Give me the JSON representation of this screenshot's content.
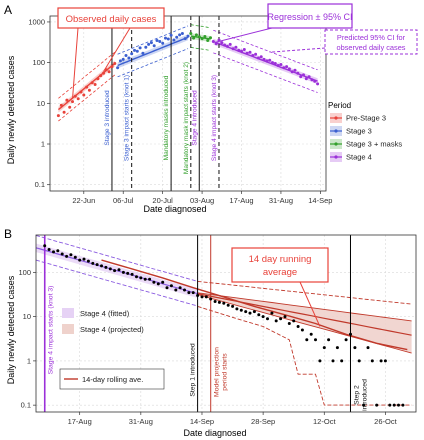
{
  "colors": {
    "pre_stage3": "#e8423a",
    "stage3": "#3b5fd0",
    "masks": "#33a02c",
    "stage4": "#9b30d9",
    "stage4_fill": "#e6d2f5",
    "projected_fill": "#efd2cc",
    "projection": "#c0392b",
    "observed": "#000000",
    "band_stage4": "#8a5be0",
    "callout_red": "#e8423a",
    "callout_purple": "#9b30d9"
  },
  "chart_data": [
    {
      "panel_letter": "A",
      "type": "scatter",
      "xlabel": "Date diagnosed",
      "ylabel": "Daily newly detected cases",
      "y_scale": "log",
      "xlim": [
        "2020-06-10",
        "2020-09-16"
      ],
      "ylim": [
        0.07,
        1400
      ],
      "x_ticks": [
        {
          "date": "2020-06-22",
          "label": "22-Jun"
        },
        {
          "date": "2020-07-06",
          "label": "06-Jul"
        },
        {
          "date": "2020-07-20",
          "label": "20-Jul"
        },
        {
          "date": "2020-08-03",
          "label": "03-Aug"
        },
        {
          "date": "2020-08-17",
          "label": "17-Aug"
        },
        {
          "date": "2020-08-31",
          "label": "31-Aug"
        },
        {
          "date": "2020-09-14",
          "label": "14-Sep"
        }
      ],
      "y_ticks": [
        {
          "value": 0.1,
          "label": "0.1"
        },
        {
          "value": 1,
          "label": "1"
        },
        {
          "value": 10,
          "label": "10"
        },
        {
          "value": 100,
          "label": "100"
        },
        {
          "value": 1000,
          "label": "1000"
        }
      ],
      "grid": true,
      "legend": {
        "title": "Period",
        "placement": "right",
        "entries": [
          {
            "label": "Pre-Stage 3",
            "color_key": "pre_stage3"
          },
          {
            "label": "Stage 3",
            "color_key": "stage3"
          },
          {
            "label": "Stage 3 + masks",
            "color_key": "masks"
          },
          {
            "label": "Stage 4",
            "color_key": "stage4"
          }
        ]
      },
      "series": [
        {
          "name": "Pre-Stage 3",
          "color_key": "pre_stage3",
          "fit": {
            "start": "2020-06-13",
            "end": "2020-07-03",
            "y_start": 7,
            "y_end": 95
          },
          "points": [
            [
              "2020-06-13",
              5
            ],
            [
              "2020-06-14",
              9
            ],
            [
              "2020-06-15",
              6
            ],
            [
              "2020-06-16",
              12
            ],
            [
              "2020-06-17",
              8
            ],
            [
              "2020-06-18",
              11
            ],
            [
              "2020-06-19",
              15
            ],
            [
              "2020-06-20",
              13
            ],
            [
              "2020-06-21",
              19
            ],
            [
              "2020-06-22",
              16
            ],
            [
              "2020-06-23",
              25
            ],
            [
              "2020-06-24",
              21
            ],
            [
              "2020-06-25",
              32
            ],
            [
              "2020-06-26",
              29
            ],
            [
              "2020-06-27",
              40
            ],
            [
              "2020-06-28",
              48
            ],
            [
              "2020-06-29",
              55
            ],
            [
              "2020-06-30",
              67
            ],
            [
              "2020-07-01",
              60
            ],
            [
              "2020-07-02",
              80
            ],
            [
              "2020-07-03",
              95
            ]
          ]
        },
        {
          "name": "Stage 3",
          "color_key": "stage3",
          "fit": {
            "start": "2020-07-04",
            "end": "2020-07-29",
            "y_start": 85,
            "y_end": 420
          },
          "points": [
            [
              "2020-07-04",
              75
            ],
            [
              "2020-07-05",
              110
            ],
            [
              "2020-07-06",
              120
            ],
            [
              "2020-07-07",
              150
            ],
            [
              "2020-07-08",
              130
            ],
            [
              "2020-07-09",
              165
            ],
            [
              "2020-07-10",
              200
            ],
            [
              "2020-07-11",
              190
            ],
            [
              "2020-07-12",
              230
            ],
            [
              "2020-07-13",
              170
            ],
            [
              "2020-07-14",
              240
            ],
            [
              "2020-07-15",
              280
            ],
            [
              "2020-07-16",
              310
            ],
            [
              "2020-07-17",
              260
            ],
            [
              "2020-07-18",
              350
            ],
            [
              "2020-07-19",
              330
            ],
            [
              "2020-07-20",
              300
            ],
            [
              "2020-07-21",
              400
            ],
            [
              "2020-07-22",
              380
            ],
            [
              "2020-07-23",
              470
            ],
            [
              "2020-07-24",
              360
            ],
            [
              "2020-07-25",
              420
            ],
            [
              "2020-07-26",
              480
            ],
            [
              "2020-07-27",
              520
            ],
            [
              "2020-07-28",
              390
            ],
            [
              "2020-07-29",
              450
            ]
          ]
        },
        {
          "name": "Stage 3 + masks",
          "color_key": "masks",
          "fit": {
            "start": "2020-07-30",
            "end": "2020-08-06",
            "y_start": 450,
            "y_end": 380
          },
          "points": [
            [
              "2020-07-30",
              520
            ],
            [
              "2020-07-31",
              400
            ],
            [
              "2020-08-01",
              480
            ],
            [
              "2020-08-02",
              430
            ],
            [
              "2020-08-03",
              390
            ],
            [
              "2020-08-04",
              440
            ],
            [
              "2020-08-05",
              350
            ],
            [
              "2020-08-06",
              410
            ]
          ]
        },
        {
          "name": "Stage 4",
          "color_key": "stage4",
          "fit": {
            "start": "2020-08-07",
            "end": "2020-09-13",
            "y_start": 330,
            "y_end": 35
          },
          "points": [
            [
              "2020-08-07",
              330
            ],
            [
              "2020-08-08",
              290
            ],
            [
              "2020-08-09",
              360
            ],
            [
              "2020-08-10",
              310
            ],
            [
              "2020-08-11",
              270
            ],
            [
              "2020-08-12",
              250
            ],
            [
              "2020-08-13",
              280
            ],
            [
              "2020-08-14",
              220
            ],
            [
              "2020-08-15",
              240
            ],
            [
              "2020-08-16",
              200
            ],
            [
              "2020-08-17",
              190
            ],
            [
              "2020-08-18",
              210
            ],
            [
              "2020-08-19",
              170
            ],
            [
              "2020-08-20",
              180
            ],
            [
              "2020-08-21",
              150
            ],
            [
              "2020-08-22",
              160
            ],
            [
              "2020-08-23",
              130
            ],
            [
              "2020-08-24",
              140
            ],
            [
              "2020-08-25",
              120
            ],
            [
              "2020-08-26",
              110
            ],
            [
              "2020-08-27",
              115
            ],
            [
              "2020-08-28",
              100
            ],
            [
              "2020-08-29",
              95
            ],
            [
              "2020-08-30",
              85
            ],
            [
              "2020-08-31",
              90
            ],
            [
              "2020-09-01",
              75
            ],
            [
              "2020-09-02",
              80
            ],
            [
              "2020-09-03",
              70
            ],
            [
              "2020-09-04",
              60
            ],
            [
              "2020-09-05",
              65
            ],
            [
              "2020-09-06",
              55
            ],
            [
              "2020-09-07",
              45
            ],
            [
              "2020-09-08",
              50
            ],
            [
              "2020-09-09",
              40
            ],
            [
              "2020-09-10",
              45
            ],
            [
              "2020-09-11",
              38
            ],
            [
              "2020-09-12",
              35
            ],
            [
              "2020-09-13",
              30
            ]
          ]
        }
      ],
      "events": [
        {
          "date": "2020-07-02",
          "label": "Stage 3 introduced",
          "style": "solid",
          "color_key": "stage3"
        },
        {
          "date": "2020-07-09",
          "label": "Stage 3 impact starts (knot 1)",
          "style": "dashed",
          "color_key": "stage3"
        },
        {
          "date": "2020-07-23",
          "label": "Mandatory masks introduced",
          "style": "solid",
          "color_key": "masks"
        },
        {
          "date": "2020-07-30",
          "label": "Mandatory mask impact starts (knot 2)",
          "style": "dashed",
          "color_key": "masks"
        },
        {
          "date": "2020-08-02",
          "label": "Stage 4 introduced",
          "style": "solid",
          "color_key": "stage4"
        },
        {
          "date": "2020-08-09",
          "label": "Stage 4 impact starts (knot 3)",
          "style": "dashed",
          "color_key": "stage4"
        }
      ],
      "annotations": [
        {
          "text": "Observed daily cases",
          "style": "red-box"
        },
        {
          "text": "Regression ± 95% CI",
          "style": "purple-box"
        },
        {
          "text": "Predicted 95% CI for observed daily cases",
          "style": "purple-dashed-box"
        }
      ]
    },
    {
      "panel_letter": "B",
      "type": "line",
      "xlabel": "Date diagnosed",
      "ylabel": "Daily newly detected cases",
      "y_scale": "log",
      "xlim": [
        "2020-08-07",
        "2020-11-02"
      ],
      "ylim": [
        0.07,
        700
      ],
      "x_ticks": [
        {
          "date": "2020-08-17",
          "label": "17-Aug"
        },
        {
          "date": "2020-08-31",
          "label": "31-Aug"
        },
        {
          "date": "2020-09-14",
          "label": "14-Sep"
        },
        {
          "date": "2020-09-28",
          "label": "28-Sep"
        },
        {
          "date": "2020-10-12",
          "label": "12-Oct"
        },
        {
          "date": "2020-10-26",
          "label": "26-Oct"
        }
      ],
      "y_ticks": [
        {
          "value": 0.1,
          "label": "0.1"
        },
        {
          "value": 1,
          "label": "1"
        },
        {
          "value": 10,
          "label": "10"
        },
        {
          "value": 100,
          "label": "100"
        }
      ],
      "grid": true,
      "legend": {
        "placement": "left",
        "entries": [
          {
            "label": "Stage 4 (fitted)",
            "color_key": "stage4_fill",
            "kind": "fill"
          },
          {
            "label": "Stage 4 (projected)",
            "color_key": "projected_fill",
            "kind": "fill"
          },
          {
            "label": "14-day rolling ave.",
            "color_key": "projection",
            "kind": "line"
          }
        ]
      },
      "observed": [
        [
          "2020-08-09",
          400
        ],
        [
          "2020-08-10",
          330
        ],
        [
          "2020-08-11",
          290
        ],
        [
          "2020-08-12",
          310
        ],
        [
          "2020-08-13",
          260
        ],
        [
          "2020-08-14",
          230
        ],
        [
          "2020-08-15",
          250
        ],
        [
          "2020-08-16",
          220
        ],
        [
          "2020-08-17",
          190
        ],
        [
          "2020-08-18",
          200
        ],
        [
          "2020-08-19",
          180
        ],
        [
          "2020-08-20",
          160
        ],
        [
          "2020-08-21",
          150
        ],
        [
          "2020-08-22",
          140
        ],
        [
          "2020-08-23",
          130
        ],
        [
          "2020-08-24",
          120
        ],
        [
          "2020-08-25",
          110
        ],
        [
          "2020-08-26",
          115
        ],
        [
          "2020-08-27",
          100
        ],
        [
          "2020-08-28",
          95
        ],
        [
          "2020-08-29",
          90
        ],
        [
          "2020-08-30",
          80
        ],
        [
          "2020-08-31",
          75
        ],
        [
          "2020-09-01",
          70
        ],
        [
          "2020-09-02",
          70
        ],
        [
          "2020-09-03",
          60
        ],
        [
          "2020-09-04",
          55
        ],
        [
          "2020-09-05",
          60
        ],
        [
          "2020-09-06",
          45
        ],
        [
          "2020-09-07",
          50
        ],
        [
          "2020-09-08",
          40
        ],
        [
          "2020-09-09",
          45
        ],
        [
          "2020-09-10",
          40
        ],
        [
          "2020-09-11",
          35
        ],
        [
          "2020-09-12",
          35
        ],
        [
          "2020-09-13",
          30
        ],
        [
          "2020-09-14",
          28
        ],
        [
          "2020-09-15",
          28
        ],
        [
          "2020-09-16",
          25
        ],
        [
          "2020-09-17",
          22
        ],
        [
          "2020-09-18",
          21
        ],
        [
          "2020-09-19",
          20
        ],
        [
          "2020-09-20",
          18
        ],
        [
          "2020-09-21",
          17
        ],
        [
          "2020-09-22",
          15
        ],
        [
          "2020-09-23",
          14
        ],
        [
          "2020-09-24",
          13
        ],
        [
          "2020-09-25",
          12
        ],
        [
          "2020-09-26",
          13
        ],
        [
          "2020-09-27",
          11
        ],
        [
          "2020-09-28",
          10
        ],
        [
          "2020-09-29",
          9
        ],
        [
          "2020-09-30",
          12
        ],
        [
          "2020-10-01",
          8
        ],
        [
          "2020-10-02",
          9
        ],
        [
          "2020-10-03",
          10
        ],
        [
          "2020-10-04",
          7
        ],
        [
          "2020-10-05",
          8
        ],
        [
          "2020-10-06",
          6
        ],
        [
          "2020-10-07",
          5
        ],
        [
          "2020-10-08",
          3
        ],
        [
          "2020-10-09",
          4
        ],
        [
          "2020-10-10",
          3
        ],
        [
          "2020-10-11",
          1
        ],
        [
          "2020-10-12",
          2
        ],
        [
          "2020-10-13",
          3
        ],
        [
          "2020-10-14",
          1
        ],
        [
          "2020-10-15",
          2
        ],
        [
          "2020-10-16",
          1
        ],
        [
          "2020-10-17",
          3
        ],
        [
          "2020-10-18",
          4
        ],
        [
          "2020-10-19",
          2
        ],
        [
          "2020-10-20",
          1
        ],
        [
          "2020-10-21",
          0.1
        ],
        [
          "2020-10-22",
          2
        ],
        [
          "2020-10-23",
          1
        ],
        [
          "2020-10-24",
          0.1
        ],
        [
          "2020-10-25",
          1
        ],
        [
          "2020-10-26",
          1
        ],
        [
          "2020-10-27",
          0.1
        ],
        [
          "2020-10-28",
          0.1
        ],
        [
          "2020-10-29",
          0.1
        ],
        [
          "2020-10-30",
          0.1
        ]
      ],
      "fitted_stage4": {
        "start": "2020-08-07",
        "end": "2020-09-13",
        "y_start": 360,
        "y_end": 33
      },
      "projection": {
        "start": "2020-09-13",
        "end": "2020-11-01",
        "y_start": 33,
        "y_end": 3.8,
        "ci_low_end": 1.5,
        "ci_high_end": 8
      },
      "rolling_average": [
        [
          "2020-08-22",
          190
        ],
        [
          "2020-08-29",
          120
        ],
        [
          "2020-09-05",
          75
        ],
        [
          "2020-09-12",
          45
        ],
        [
          "2020-09-19",
          28
        ],
        [
          "2020-09-26",
          17
        ],
        [
          "2020-10-03",
          11
        ],
        [
          "2020-10-10",
          7
        ],
        [
          "2020-10-17",
          4
        ],
        [
          "2020-10-24",
          2.5
        ],
        [
          "2020-10-31",
          1.8
        ]
      ],
      "events": [
        {
          "date": "2020-08-09",
          "label": "Stage 4 impact starts (knot 3)",
          "style": "solid",
          "color_key": "stage4"
        },
        {
          "date": "2020-09-13",
          "label": "Step 1 introduced",
          "style": "solid",
          "color_key": "observed"
        },
        {
          "date": "2020-09-16",
          "label": "Model projection period starts",
          "style": "solid",
          "color_key": "projection"
        },
        {
          "date": "2020-10-18",
          "label": "Step 2 introduced",
          "style": "solid",
          "color_key": "observed"
        }
      ],
      "annotations": [
        {
          "text": "14 day running average",
          "style": "red-box"
        }
      ]
    }
  ]
}
